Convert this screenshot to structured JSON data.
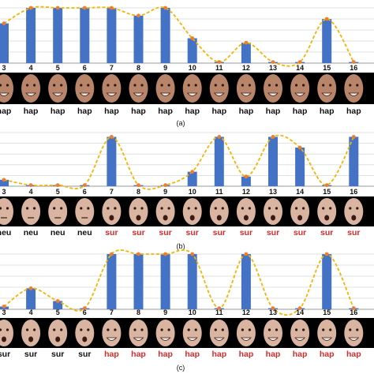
{
  "colors": {
    "bar": "#4472c4",
    "curve": "#f4b400",
    "marker": "#ed7d31",
    "label_default": "#111111",
    "label_highlight": "#d62b2b",
    "grid": "#d9d9d9"
  },
  "chart_data": [
    {
      "type": "bar",
      "overlay": "line",
      "caption": "(a)",
      "grid": true,
      "categories": [
        "3",
        "4",
        "5",
        "6",
        "7",
        "8",
        "9",
        "10",
        "11",
        "12",
        "13",
        "14",
        "15",
        "16"
      ],
      "values": [
        0.72,
        1.0,
        1.0,
        1.0,
        1.0,
        0.86,
        1.0,
        0.45,
        0.02,
        0.37,
        0.02,
        0.02,
        0.8,
        0.02
      ],
      "labels": [
        "hap",
        "hap",
        "hap",
        "hap",
        "hap",
        "hap",
        "hap",
        "hap",
        "hap",
        "hap",
        "hap",
        "hap",
        "hap",
        "hap"
      ],
      "highlight": [
        false,
        false,
        false,
        false,
        false,
        false,
        false,
        false,
        false,
        false,
        false,
        false,
        false,
        false
      ],
      "ylim": [
        0,
        1.0
      ],
      "face_tone": "dark"
    },
    {
      "type": "bar",
      "overlay": "line",
      "caption": "(b)",
      "grid": true,
      "categories": [
        "3",
        "4",
        "5",
        "6",
        "7",
        "8",
        "9",
        "10",
        "11",
        "12",
        "13",
        "14",
        "15",
        "16"
      ],
      "values": [
        0.12,
        0.02,
        0.02,
        0.02,
        0.92,
        0.02,
        0.02,
        0.27,
        0.92,
        0.18,
        0.92,
        0.72,
        0.02,
        0.92
      ],
      "labels": [
        "neu",
        "neu",
        "neu",
        "neu",
        "sur",
        "sur",
        "sur",
        "sur",
        "sur",
        "sur",
        "sur",
        "sur",
        "sur",
        "sur"
      ],
      "highlight": [
        false,
        false,
        false,
        false,
        true,
        true,
        true,
        true,
        true,
        true,
        true,
        true,
        true,
        true
      ],
      "ylim": [
        0,
        1.0
      ],
      "face_tone": "light"
    },
    {
      "type": "bar",
      "overlay": "line",
      "caption": "(c)",
      "grid": true,
      "categories": [
        "3",
        "4",
        "5",
        "6",
        "7",
        "8",
        "9",
        "10",
        "11",
        "12",
        "13",
        "14",
        "15",
        "16"
      ],
      "values": [
        0.05,
        0.38,
        0.15,
        0.02,
        1.0,
        1.0,
        1.0,
        1.0,
        0.02,
        1.0,
        0.02,
        0.02,
        1.0,
        0.02
      ],
      "labels": [
        "sur",
        "sur",
        "sur",
        "sur",
        "hap",
        "hap",
        "hap",
        "hap",
        "hap",
        "hap",
        "hap",
        "hap",
        "hap",
        "hap"
      ],
      "highlight": [
        false,
        false,
        false,
        false,
        true,
        true,
        true,
        true,
        true,
        true,
        true,
        true,
        true,
        true
      ],
      "ylim": [
        0,
        1.0
      ],
      "face_tone": "light"
    }
  ]
}
